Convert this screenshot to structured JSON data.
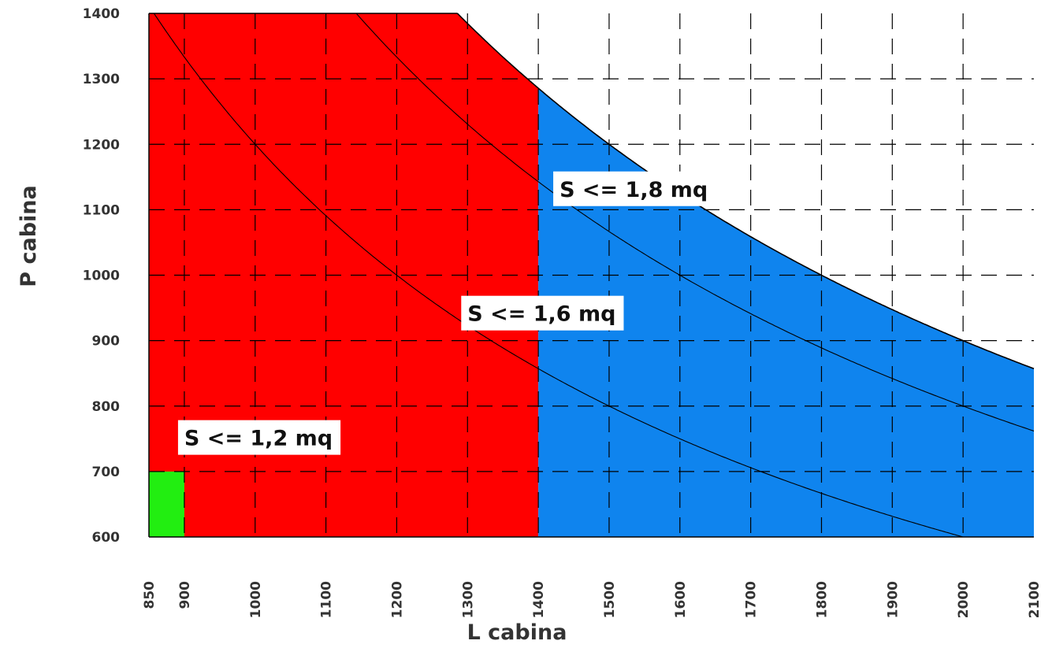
{
  "chart_data": {
    "type": "area",
    "xlabel": "L cabina",
    "ylabel": "P cabina",
    "xlim": [
      850,
      2100
    ],
    "ylim": [
      600,
      1400
    ],
    "x_ticks": [
      850,
      900,
      1000,
      1100,
      1200,
      1300,
      1400,
      1500,
      1600,
      1700,
      1800,
      1900,
      2000,
      2100
    ],
    "y_ticks": [
      600,
      700,
      800,
      900,
      1000,
      1100,
      1200,
      1300,
      1400
    ],
    "grid": true,
    "regions": [
      {
        "color": "#ff0000",
        "x_range": [
          850,
          1400
        ],
        "upper_bound": "min(1400, 1800000/L)"
      },
      {
        "color": "#0f84ee",
        "x_range": [
          1400,
          2100
        ],
        "upper_bound": "1800000/L"
      },
      {
        "color": "#22ee11",
        "x_range": [
          850,
          900
        ],
        "y_range": [
          600,
          700
        ]
      }
    ],
    "curves": [
      {
        "label": "S <= 1,2 mq",
        "area_mq": 1.2
      },
      {
        "label": "S <= 1,6 mq",
        "area_mq": 1.6
      },
      {
        "label": "S <= 1,8 mq",
        "area_mq": 1.8
      }
    ],
    "annotations": [
      {
        "text": "S <= 1,8 mq",
        "x": 1430,
        "y": 1120
      },
      {
        "text": "S <= 1,6 mq",
        "x": 1300,
        "y": 930
      },
      {
        "text": "S <= 1,2 mq",
        "x": 900,
        "y": 740
      }
    ]
  }
}
